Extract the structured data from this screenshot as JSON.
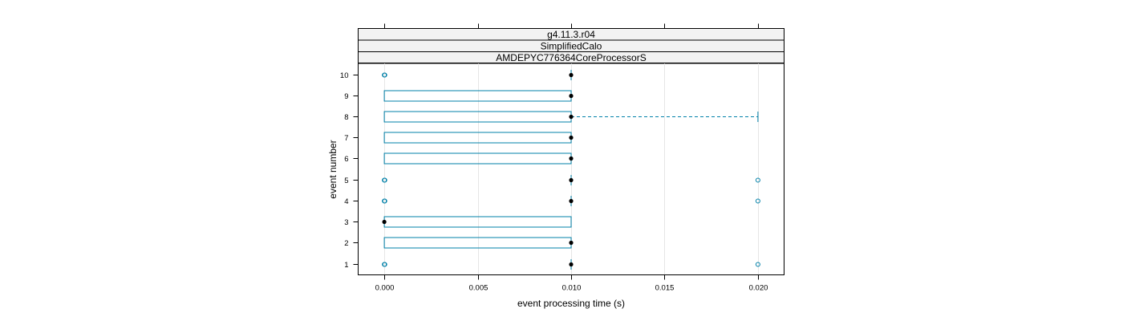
{
  "chart_data": {
    "type": "box",
    "strips": [
      "g4.11.3.r04",
      "SimplifiedCalo",
      "AMDEPYC776364CoreProcessorS"
    ],
    "xlabel": "event processing time (s)",
    "ylabel": "event number",
    "xlim": [
      -0.0014,
      0.0214
    ],
    "xticks": [
      0.0,
      0.005,
      0.01,
      0.015,
      0.02
    ],
    "xtick_labels": [
      "0.000",
      "0.005",
      "0.010",
      "0.015",
      "0.020"
    ],
    "categories": [
      "1",
      "2",
      "3",
      "4",
      "5",
      "6",
      "7",
      "8",
      "9",
      "10"
    ],
    "grid": "vertical",
    "box_color": "#0080a8",
    "boxes": [
      {
        "event": "1",
        "q1": 0.01,
        "median": 0.01,
        "q3": 0.01,
        "whisker_low": 0.01,
        "whisker_high": 0.01,
        "outliers": [
          0.0,
          0.0,
          0.02
        ]
      },
      {
        "event": "2",
        "q1": 0.0,
        "median": 0.01,
        "q3": 0.01,
        "whisker_low": 0.0,
        "whisker_high": 0.01,
        "outliers": []
      },
      {
        "event": "3",
        "q1": 0.0,
        "median": 0.0,
        "q3": 0.01,
        "whisker_low": 0.0,
        "whisker_high": 0.01,
        "outliers": []
      },
      {
        "event": "4",
        "q1": 0.01,
        "median": 0.01,
        "q3": 0.01,
        "whisker_low": 0.01,
        "whisker_high": 0.01,
        "outliers": [
          0.0,
          0.0,
          0.02
        ]
      },
      {
        "event": "5",
        "q1": 0.01,
        "median": 0.01,
        "q3": 0.01,
        "whisker_low": 0.01,
        "whisker_high": 0.01,
        "outliers": [
          0.0,
          0.0,
          0.02
        ]
      },
      {
        "event": "6",
        "q1": 0.0,
        "median": 0.01,
        "q3": 0.01,
        "whisker_low": 0.0,
        "whisker_high": 0.01,
        "outliers": []
      },
      {
        "event": "7",
        "q1": 0.0,
        "median": 0.01,
        "q3": 0.01,
        "whisker_low": 0.0,
        "whisker_high": 0.01,
        "outliers": []
      },
      {
        "event": "8",
        "q1": 0.0,
        "median": 0.01,
        "q3": 0.01,
        "whisker_low": 0.0,
        "whisker_high": 0.02,
        "outliers": []
      },
      {
        "event": "9",
        "q1": 0.0,
        "median": 0.01,
        "q3": 0.01,
        "whisker_low": 0.0,
        "whisker_high": 0.01,
        "outliers": []
      },
      {
        "event": "10",
        "q1": 0.01,
        "median": 0.01,
        "q3": 0.01,
        "whisker_low": 0.01,
        "whisker_high": 0.01,
        "outliers": [
          0.0,
          0.0
        ]
      }
    ]
  }
}
